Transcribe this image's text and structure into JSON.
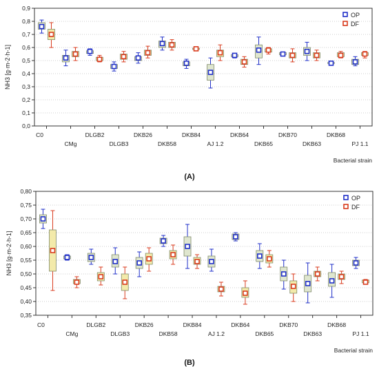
{
  "colors": {
    "op": "#1f2fc8",
    "df": "#d93a1c",
    "op_box": "#dfe6cf",
    "df_box": "#f3eaaa",
    "axis": "#333333",
    "grid": "#bdbdbd"
  },
  "chart_data": [
    {
      "type": "box",
      "panel_label": "(A)",
      "ylabel": "NH3 [g·m-2·h-1]",
      "xlabel": "Bacterial strain",
      "ylim": [
        0.0,
        0.9
      ],
      "yticks": [
        "0,0",
        "0,1",
        "0,2",
        "0,3",
        "0,4",
        "0,5",
        "0,6",
        "0,7",
        "0,8",
        "0,9"
      ],
      "grid": true,
      "legend": {
        "position": "top-right",
        "entries": [
          "OP",
          "DF"
        ]
      },
      "categories": [
        "C0",
        "CMg",
        "DLGB2",
        "DLGB3",
        "DKB26",
        "DKB58",
        "DKB84",
        "AJ 1.2",
        "DKB64",
        "DKB65",
        "DKB70",
        "DKB63",
        "DKB68",
        "PJ 1.1"
      ],
      "series": [
        {
          "name": "OP",
          "boxes": [
            {
              "median": 0.76,
              "q1": 0.74,
              "q3": 0.79,
              "min": 0.71,
              "max": 0.81
            },
            {
              "median": 0.52,
              "q1": 0.49,
              "q3": 0.54,
              "min": 0.46,
              "max": 0.58
            },
            {
              "median": 0.57,
              "q1": 0.555,
              "q3": 0.575,
              "min": 0.54,
              "max": 0.59
            },
            {
              "median": 0.455,
              "q1": 0.44,
              "q3": 0.47,
              "min": 0.42,
              "max": 0.49
            },
            {
              "median": 0.52,
              "q1": 0.5,
              "q3": 0.53,
              "min": 0.48,
              "max": 0.56
            },
            {
              "median": 0.63,
              "q1": 0.6,
              "q3": 0.65,
              "min": 0.58,
              "max": 0.68
            },
            {
              "median": 0.48,
              "q1": 0.46,
              "q3": 0.49,
              "min": 0.44,
              "max": 0.51
            },
            {
              "median": 0.41,
              "q1": 0.35,
              "q3": 0.47,
              "min": 0.29,
              "max": 0.52
            },
            {
              "median": 0.54,
              "q1": 0.53,
              "q3": 0.545,
              "min": 0.52,
              "max": 0.55
            },
            {
              "median": 0.58,
              "q1": 0.52,
              "q3": 0.62,
              "min": 0.47,
              "max": 0.68
            },
            {
              "median": 0.55,
              "q1": 0.545,
              "q3": 0.56,
              "min": 0.54,
              "max": 0.56
            },
            {
              "median": 0.57,
              "q1": 0.54,
              "q3": 0.6,
              "min": 0.5,
              "max": 0.64
            },
            {
              "median": 0.48,
              "q1": 0.478,
              "q3": 0.485,
              "min": 0.475,
              "max": 0.49
            },
            {
              "median": 0.49,
              "q1": 0.47,
              "q3": 0.51,
              "min": 0.46,
              "max": 0.53
            }
          ]
        },
        {
          "name": "DF",
          "boxes": [
            {
              "median": 0.7,
              "q1": 0.66,
              "q3": 0.74,
              "min": 0.6,
              "max": 0.79
            },
            {
              "median": 0.55,
              "q1": 0.53,
              "q3": 0.57,
              "min": 0.5,
              "max": 0.6
            },
            {
              "median": 0.51,
              "q1": 0.5,
              "q3": 0.525,
              "min": 0.49,
              "max": 0.54
            },
            {
              "median": 0.53,
              "q1": 0.51,
              "q3": 0.55,
              "min": 0.49,
              "max": 0.57
            },
            {
              "median": 0.56,
              "q1": 0.54,
              "q3": 0.58,
              "min": 0.52,
              "max": 0.61
            },
            {
              "median": 0.62,
              "q1": 0.6,
              "q3": 0.64,
              "min": 0.58,
              "max": 0.66
            },
            {
              "median": 0.59,
              "q1": 0.585,
              "q3": 0.595,
              "min": 0.58,
              "max": 0.6
            },
            {
              "median": 0.56,
              "q1": 0.53,
              "q3": 0.58,
              "min": 0.5,
              "max": 0.62
            },
            {
              "median": 0.49,
              "q1": 0.47,
              "q3": 0.51,
              "min": 0.45,
              "max": 0.53
            },
            {
              "median": 0.58,
              "q1": 0.565,
              "q3": 0.59,
              "min": 0.55,
              "max": 0.6
            },
            {
              "median": 0.54,
              "q1": 0.52,
              "q3": 0.56,
              "min": 0.49,
              "max": 0.59
            },
            {
              "median": 0.54,
              "q1": 0.52,
              "q3": 0.56,
              "min": 0.5,
              "max": 0.58
            },
            {
              "median": 0.54,
              "q1": 0.53,
              "q3": 0.56,
              "min": 0.52,
              "max": 0.57
            },
            {
              "median": 0.55,
              "q1": 0.54,
              "q3": 0.56,
              "min": 0.52,
              "max": 0.57
            }
          ]
        }
      ]
    },
    {
      "type": "box",
      "panel_label": "(B)",
      "ylabel": "NH3 [g·m-2·h-1]",
      "xlabel": "Bacterial strain",
      "ylim": [
        0.35,
        0.8
      ],
      "yticks": [
        "0,35",
        "0,40",
        "0,45",
        "0,50",
        "0,55",
        "0,60",
        "0,65",
        "0,70",
        "0,75",
        "0,80"
      ],
      "grid": true,
      "legend": {
        "position": "top-right",
        "entries": [
          "OP",
          "DF"
        ]
      },
      "categories": [
        "C0",
        "CMg",
        "DLGB2",
        "DLGB3",
        "DKB26",
        "DKB58",
        "DKB84",
        "AJ 1.2",
        "DKB64",
        "DKB65",
        "DKB70",
        "DKB63",
        "DKB68",
        "PJ 1.1"
      ],
      "series": [
        {
          "name": "OP",
          "boxes": [
            {
              "median": 0.7,
              "q1": 0.685,
              "q3": 0.715,
              "min": 0.665,
              "max": 0.735
            },
            {
              "median": 0.56,
              "q1": 0.555,
              "q3": 0.565,
              "min": 0.55,
              "max": 0.57
            },
            {
              "median": 0.56,
              "q1": 0.545,
              "q3": 0.575,
              "min": 0.535,
              "max": 0.59
            },
            {
              "median": 0.545,
              "q1": 0.525,
              "q3": 0.57,
              "min": 0.5,
              "max": 0.595
            },
            {
              "median": 0.54,
              "q1": 0.52,
              "q3": 0.56,
              "min": 0.49,
              "max": 0.58
            },
            {
              "median": 0.62,
              "q1": 0.61,
              "q3": 0.63,
              "min": 0.6,
              "max": 0.64
            },
            {
              "median": 0.6,
              "q1": 0.565,
              "q3": 0.635,
              "min": 0.52,
              "max": 0.68
            },
            {
              "median": 0.545,
              "q1": 0.525,
              "q3": 0.565,
              "min": 0.51,
              "max": 0.59
            },
            {
              "median": 0.635,
              "q1": 0.625,
              "q3": 0.645,
              "min": 0.62,
              "max": 0.65
            },
            {
              "median": 0.565,
              "q1": 0.545,
              "q3": 0.585,
              "min": 0.52,
              "max": 0.61
            },
            {
              "median": 0.5,
              "q1": 0.475,
              "q3": 0.525,
              "min": 0.445,
              "max": 0.55
            },
            {
              "median": 0.465,
              "q1": 0.435,
              "q3": 0.495,
              "min": 0.395,
              "max": 0.54
            },
            {
              "median": 0.475,
              "q1": 0.455,
              "q3": 0.505,
              "min": 0.415,
              "max": 0.535
            },
            {
              "median": 0.54,
              "q1": 0.53,
              "q3": 0.55,
              "min": 0.52,
              "max": 0.56
            }
          ]
        },
        {
          "name": "DF",
          "boxes": [
            {
              "median": 0.585,
              "q1": 0.51,
              "q3": 0.66,
              "min": 0.44,
              "max": 0.73
            },
            {
              "median": 0.47,
              "q1": 0.465,
              "q3": 0.48,
              "min": 0.45,
              "max": 0.49
            },
            {
              "median": 0.49,
              "q1": 0.475,
              "q3": 0.505,
              "min": 0.46,
              "max": 0.525
            },
            {
              "median": 0.47,
              "q1": 0.44,
              "q3": 0.5,
              "min": 0.41,
              "max": 0.525
            },
            {
              "median": 0.555,
              "q1": 0.535,
              "q3": 0.575,
              "min": 0.51,
              "max": 0.595
            },
            {
              "median": 0.57,
              "q1": 0.555,
              "q3": 0.585,
              "min": 0.535,
              "max": 0.605
            },
            {
              "median": 0.545,
              "q1": 0.535,
              "q3": 0.56,
              "min": 0.52,
              "max": 0.57
            },
            {
              "median": 0.445,
              "q1": 0.435,
              "q3": 0.455,
              "min": 0.42,
              "max": 0.47
            },
            {
              "median": 0.43,
              "q1": 0.415,
              "q3": 0.45,
              "min": 0.39,
              "max": 0.475
            },
            {
              "median": 0.555,
              "q1": 0.54,
              "q3": 0.57,
              "min": 0.525,
              "max": 0.585
            },
            {
              "median": 0.455,
              "q1": 0.43,
              "q3": 0.475,
              "min": 0.4,
              "max": 0.5
            },
            {
              "median": 0.5,
              "q1": 0.49,
              "q3": 0.51,
              "min": 0.475,
              "max": 0.525
            },
            {
              "median": 0.49,
              "q1": 0.48,
              "q3": 0.5,
              "min": 0.465,
              "max": 0.51
            },
            {
              "median": 0.47,
              "q1": 0.468,
              "q3": 0.478,
              "min": 0.465,
              "max": 0.48
            }
          ]
        }
      ]
    }
  ]
}
